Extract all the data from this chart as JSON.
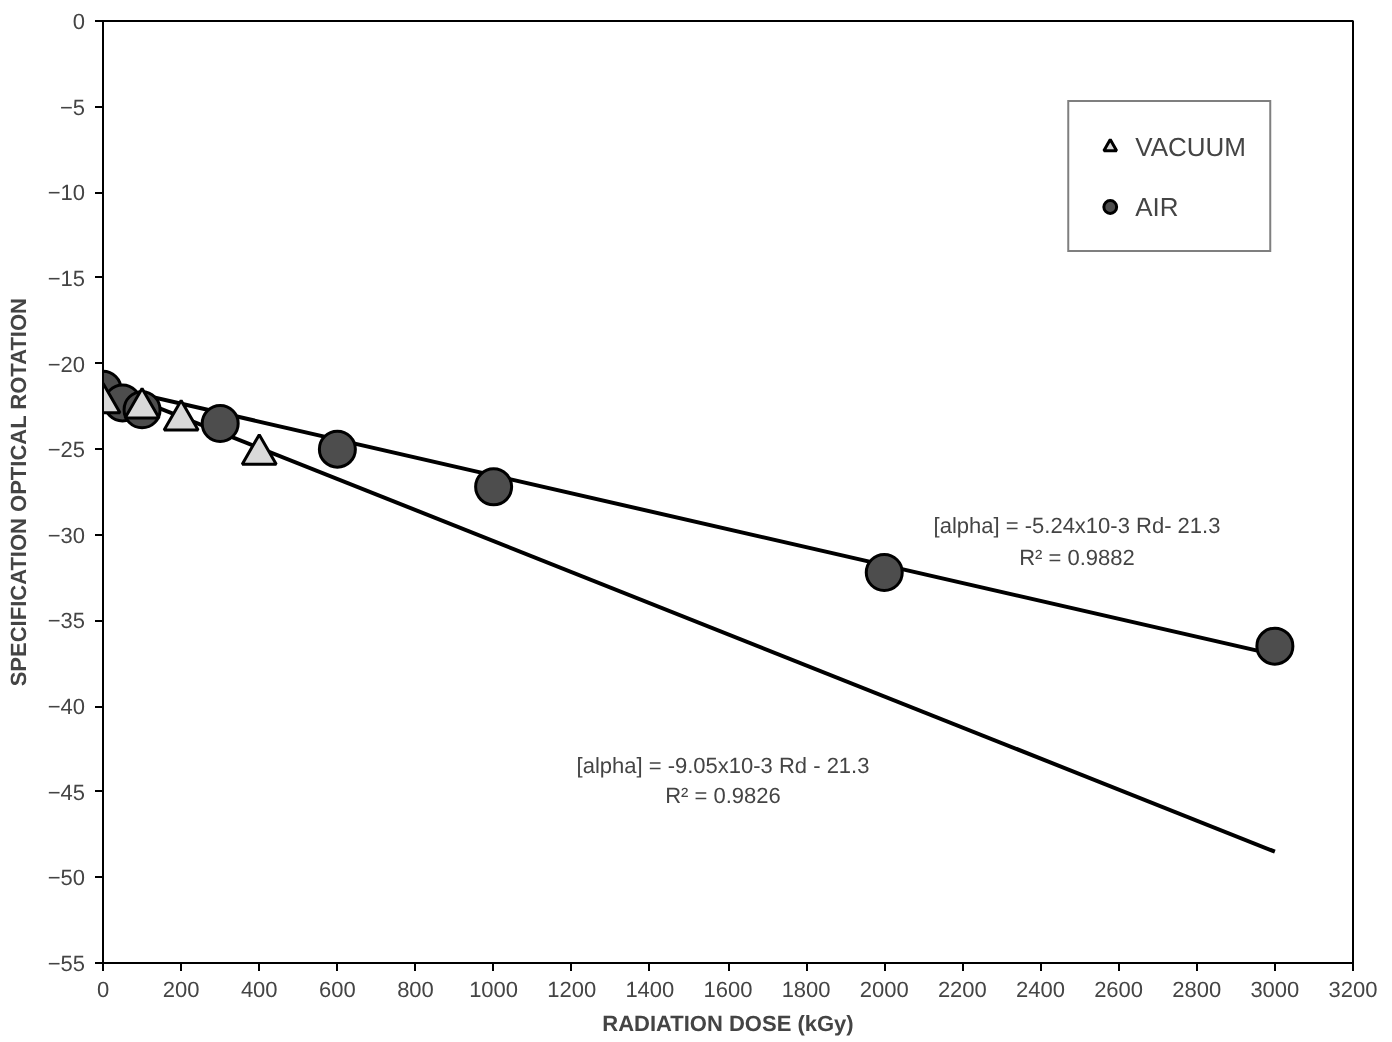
{
  "chart_data": {
    "type": "scatter",
    "xlabel": "RADIATION DOSE (kGy)",
    "ylabel": "SPECIFICATION OPTICAL ROTATION",
    "xlim": [
      0,
      3200
    ],
    "xticks": [
      0,
      200,
      400,
      600,
      800,
      1000,
      1200,
      1400,
      1600,
      1800,
      2000,
      2200,
      2400,
      2600,
      2800,
      3000,
      3200
    ],
    "ylim": [
      -55,
      0
    ],
    "yticks": [
      0,
      -5,
      -10,
      -15,
      -20,
      -25,
      -30,
      -35,
      -40,
      -45,
      -50,
      -55
    ],
    "grid": false,
    "legend": "top right",
    "series": [
      {
        "name": "VACUUM",
        "marker": "triangle",
        "color": "#d9d9d9",
        "x": [
          0,
          100,
          200,
          400
        ],
        "values": [
          -22.3,
          -22.6,
          -23.3,
          -25.3
        ]
      },
      {
        "name": "AIR",
        "marker": "circle",
        "color": "#4d4d4d",
        "x": [
          0,
          50,
          100,
          300,
          600,
          1000,
          2000,
          3000
        ],
        "values": [
          -21.5,
          -22.3,
          -22.7,
          -23.5,
          -25.0,
          -27.2,
          -32.2,
          -36.5
        ]
      },
      {
        "type": "line",
        "color": "#000000",
        "x": [
          0,
          3000
        ],
        "values": [
          -21.3,
          -37.0
        ]
      },
      {
        "type": "line",
        "color": "#000000",
        "x": [
          0,
          3000
        ],
        "values": [
          -21.3,
          -48.5
        ]
      }
    ],
    "annotations": [
      "[alpha] = -5.24x10-3 Rd- 21.3",
      "R² = 0.9882",
      "[alpha] = -9.05x10-3 Rd - 21.3",
      "R² = 0.9826"
    ]
  }
}
